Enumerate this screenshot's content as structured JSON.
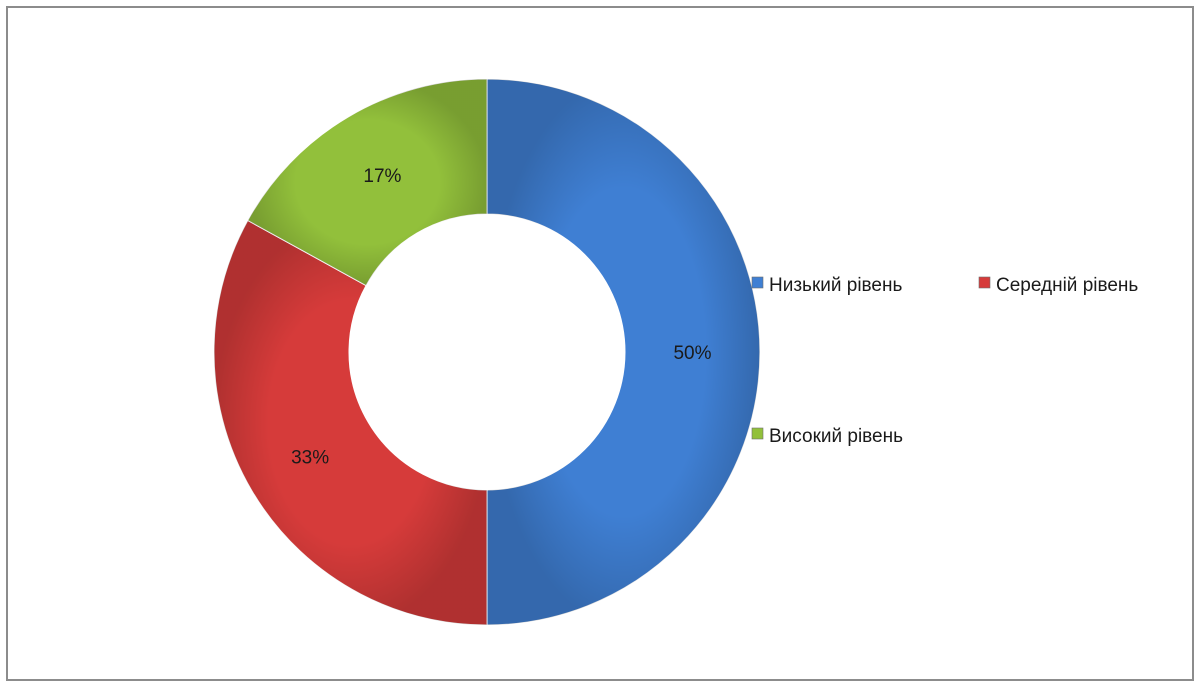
{
  "chart_data": {
    "type": "pie",
    "variant": "doughnut",
    "title": "",
    "categories": [
      "Низький рівень",
      "Середній рівень",
      "Високий рівень"
    ],
    "values": [
      50,
      33,
      17
    ],
    "data_labels": [
      "50%",
      "33%",
      "17%"
    ],
    "colors": [
      "#3f7fd3",
      "#d63b3a",
      "#92c03b"
    ],
    "legend": {
      "placement": "right",
      "entries": [
        "Низький рівень",
        "Середній рівень",
        "Високий рівень"
      ]
    }
  }
}
